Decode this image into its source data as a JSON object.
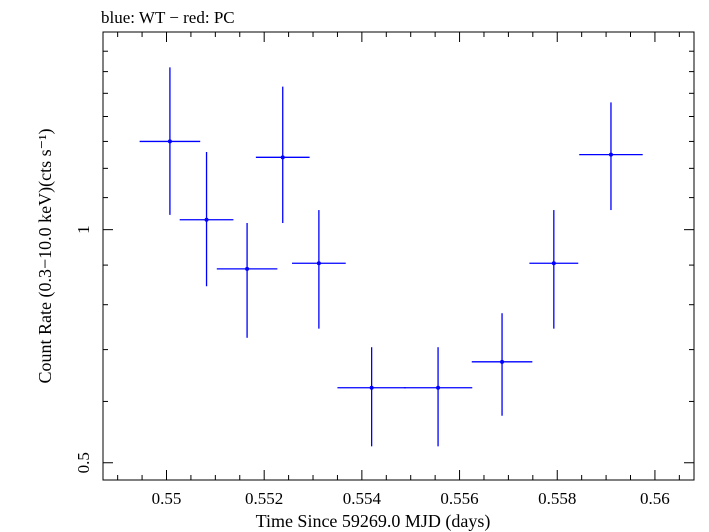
{
  "chart_data": {
    "type": "scatter",
    "title": "blue: WT − red: PC",
    "xlabel": "Time Since 59269.0 MJD (days)",
    "ylabel": "Count Rate (0.3−10.0 keV)(cts s⁻¹)",
    "xlim": [
      0.5487,
      0.5608
    ],
    "ylim": [
      0.475,
      1.8
    ],
    "yscale": "log",
    "grid": false,
    "x_ticks": [
      0.55,
      0.552,
      0.554,
      0.556,
      0.558,
      0.56
    ],
    "x_tick_labels": [
      "0.55",
      "0.552",
      "0.554",
      "0.556",
      "0.558",
      "0.56"
    ],
    "y_ticks": [
      0.5,
      1
    ],
    "y_tick_labels": [
      "0.5",
      "1"
    ],
    "series": [
      {
        "color": "#0000ff",
        "points": [
          {
            "x": 0.55007,
            "xerr": 0.00062,
            "y": 1.3,
            "ylo": 1.045,
            "yhi": 1.62
          },
          {
            "x": 0.55082,
            "xerr": 0.00055,
            "y": 1.03,
            "ylo": 0.845,
            "yhi": 1.26
          },
          {
            "x": 0.55165,
            "xerr": 0.00062,
            "y": 0.89,
            "ylo": 0.725,
            "yhi": 1.02
          },
          {
            "x": 0.55238,
            "xerr": 0.00055,
            "y": 1.24,
            "ylo": 1.02,
            "yhi": 1.53
          },
          {
            "x": 0.55312,
            "xerr": 0.00055,
            "y": 0.905,
            "ylo": 0.745,
            "yhi": 1.06
          },
          {
            "x": 0.5542,
            "xerr": 0.0007,
            "y": 0.625,
            "ylo": 0.525,
            "yhi": 0.705
          },
          {
            "x": 0.55556,
            "xerr": 0.0007,
            "y": 0.625,
            "ylo": 0.525,
            "yhi": 0.705
          },
          {
            "x": 0.55687,
            "xerr": 0.00062,
            "y": 0.675,
            "ylo": 0.575,
            "yhi": 0.78
          },
          {
            "x": 0.55793,
            "xerr": 0.0005,
            "y": 0.905,
            "ylo": 0.745,
            "yhi": 1.06
          },
          {
            "x": 0.5591,
            "xerr": 0.00065,
            "y": 1.25,
            "ylo": 1.06,
            "yhi": 1.46
          }
        ]
      }
    ]
  }
}
